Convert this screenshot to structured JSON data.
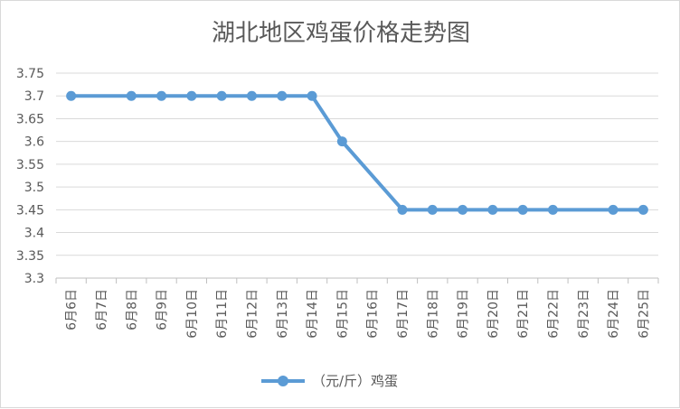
{
  "chart_data": {
    "type": "line",
    "title": "湖北地区鸡蛋价格走势图",
    "xlabel": "",
    "ylabel": "",
    "categories": [
      "6月6日",
      "6月7日",
      "6月8日",
      "6月9日",
      "6月10日",
      "6月11日",
      "6月12日",
      "6月13日",
      "6月14日",
      "6月15日",
      "6月16日",
      "6月17日",
      "6月18日",
      "6月19日",
      "6月20日",
      "6月21日",
      "6月22日",
      "6月23日",
      "6月24日",
      "6月25日"
    ],
    "series": [
      {
        "name": "（元/斤）鸡蛋",
        "values": [
          3.7,
          null,
          3.7,
          3.7,
          3.7,
          3.7,
          3.7,
          3.7,
          3.7,
          3.6,
          null,
          3.45,
          3.45,
          3.45,
          3.45,
          3.45,
          3.45,
          null,
          3.45,
          3.45
        ],
        "color": "#5b9bd5"
      }
    ],
    "ylim": [
      3.3,
      3.75
    ],
    "yticks": [
      "3.75",
      "3.7",
      "3.65",
      "3.6",
      "3.55",
      "3.5",
      "3.45",
      "3.4",
      "3.35",
      "3.3"
    ],
    "grid": true,
    "legend_position": "bottom"
  }
}
